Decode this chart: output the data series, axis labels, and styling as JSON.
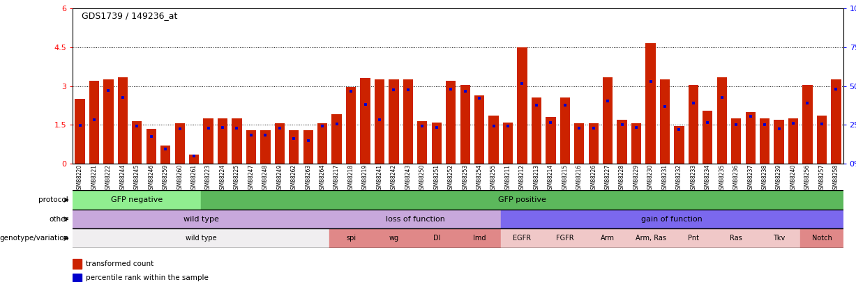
{
  "title": "GDS1739 / 149236_at",
  "samples": [
    "GSM88220",
    "GSM88221",
    "GSM88222",
    "GSM88244",
    "GSM88245",
    "GSM88246",
    "GSM88259",
    "GSM88260",
    "GSM88261",
    "GSM88223",
    "GSM88224",
    "GSM88225",
    "GSM88247",
    "GSM88248",
    "GSM88249",
    "GSM88262",
    "GSM88263",
    "GSM88264",
    "GSM88217",
    "GSM88218",
    "GSM88219",
    "GSM88241",
    "GSM88242",
    "GSM88243",
    "GSM88250",
    "GSM88251",
    "GSM88252",
    "GSM88253",
    "GSM88254",
    "GSM88255",
    "GSM88211",
    "GSM88212",
    "GSM88213",
    "GSM88214",
    "GSM88215",
    "GSM88216",
    "GSM88226",
    "GSM88227",
    "GSM88228",
    "GSM88229",
    "GSM88230",
    "GSM88231",
    "GSM88232",
    "GSM88233",
    "GSM88234",
    "GSM88235",
    "GSM88236",
    "GSM88237",
    "GSM88238",
    "GSM88239",
    "GSM88240",
    "GSM88256",
    "GSM88257",
    "GSM88258"
  ],
  "red_values": [
    2.5,
    3.2,
    3.25,
    3.35,
    1.65,
    1.35,
    0.7,
    1.55,
    0.35,
    1.75,
    1.75,
    1.75,
    1.3,
    1.3,
    1.55,
    1.3,
    1.3,
    1.55,
    1.9,
    2.95,
    3.3,
    3.25,
    3.25,
    3.25,
    1.65,
    1.6,
    3.2,
    3.05,
    2.65,
    1.85,
    1.6,
    4.5,
    2.55,
    1.8,
    2.55,
    1.55,
    1.55,
    3.35,
    1.7,
    1.55,
    4.65,
    3.25,
    1.45,
    3.05,
    2.05,
    3.35,
    1.75,
    2.0,
    1.75,
    1.7,
    1.75,
    3.05,
    1.85,
    3.25
  ],
  "blue_values": [
    1.48,
    1.7,
    2.82,
    2.55,
    1.45,
    1.05,
    0.55,
    1.35,
    0.3,
    1.38,
    1.4,
    1.38,
    1.1,
    1.1,
    1.38,
    0.98,
    0.88,
    1.45,
    1.52,
    2.8,
    2.28,
    1.7,
    2.85,
    2.85,
    1.45,
    1.4,
    2.88,
    2.8,
    2.52,
    1.45,
    1.45,
    3.1,
    2.25,
    1.58,
    2.25,
    1.38,
    1.38,
    2.42,
    1.5,
    1.4,
    3.18,
    2.2,
    1.32,
    2.35,
    1.6,
    2.55,
    1.5,
    1.82,
    1.5,
    1.35,
    1.55,
    2.35,
    1.52,
    2.88
  ],
  "protocol_groups": [
    {
      "label": "GFP negative",
      "start": 0,
      "end": 9,
      "color": "#90EE90"
    },
    {
      "label": "GFP positive",
      "start": 9,
      "end": 54,
      "color": "#5CB85C"
    }
  ],
  "other_groups": [
    {
      "label": "wild type",
      "start": 0,
      "end": 18,
      "color": "#C8A8DC"
    },
    {
      "label": "loss of function",
      "start": 18,
      "end": 30,
      "color": "#C8A8DC"
    },
    {
      "label": "gain of function",
      "start": 30,
      "end": 54,
      "color": "#7B68EE"
    }
  ],
  "genotype_groups": [
    {
      "label": "wild type",
      "start": 0,
      "end": 18,
      "color": "#F0EEF0"
    },
    {
      "label": "spi",
      "start": 18,
      "end": 21,
      "color": "#E08888"
    },
    {
      "label": "wg",
      "start": 21,
      "end": 24,
      "color": "#E08888"
    },
    {
      "label": "Dl",
      "start": 24,
      "end": 27,
      "color": "#E08888"
    },
    {
      "label": "Imd",
      "start": 27,
      "end": 30,
      "color": "#E08888"
    },
    {
      "label": "EGFR",
      "start": 30,
      "end": 33,
      "color": "#F0C8C8"
    },
    {
      "label": "FGFR",
      "start": 33,
      "end": 36,
      "color": "#F0C8C8"
    },
    {
      "label": "Arm",
      "start": 36,
      "end": 39,
      "color": "#F0C8C8"
    },
    {
      "label": "Arm, Ras",
      "start": 39,
      "end": 42,
      "color": "#F0C8C8"
    },
    {
      "label": "Pnt",
      "start": 42,
      "end": 45,
      "color": "#F0C8C8"
    },
    {
      "label": "Ras",
      "start": 45,
      "end": 48,
      "color": "#F0C8C8"
    },
    {
      "label": "Tkv",
      "start": 48,
      "end": 51,
      "color": "#F0C8C8"
    },
    {
      "label": "Notch",
      "start": 51,
      "end": 54,
      "color": "#E08888"
    }
  ],
  "ylim_left": [
    0,
    6
  ],
  "ylim_right": [
    0,
    100
  ],
  "yticks_left": [
    0,
    1.5,
    3.0,
    4.5,
    6.0
  ],
  "yticks_right": [
    0,
    25,
    50,
    75,
    100
  ],
  "bar_color": "#CC2200",
  "blue_color": "#0000CC",
  "row_labels": [
    "protocol",
    "other",
    "genotype/variation"
  ],
  "legend_red": "transformed count",
  "legend_blue": "percentile rank within the sample"
}
